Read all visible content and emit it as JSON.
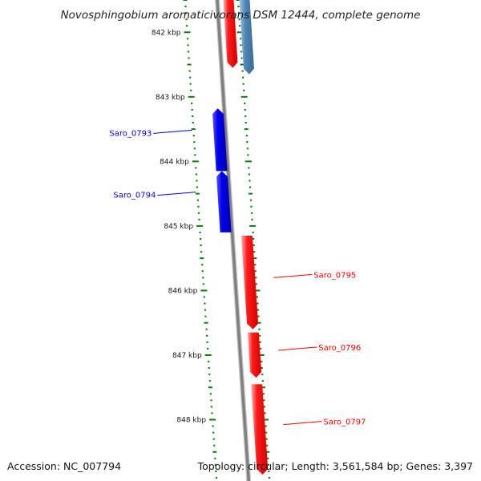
{
  "title": "Novosphingobium aromaticivorans DSM 12444, complete genome",
  "footer": {
    "accession": "Accession: NC_007794",
    "summary": "Topology: circular; Length: 3,561,584 bp; Genes: 3,397"
  },
  "colors": {
    "forward_strand": "#ff0000",
    "reverse_strand": "#0000ee",
    "other_gene": "#4f86b5",
    "backbone": "#808080",
    "ticks": "#0a7a0a"
  },
  "scale": {
    "kbp_range": [
      841.5,
      848.95
    ],
    "labels": [
      "842 kbp",
      "843 kbp",
      "844 kbp",
      "845 kbp",
      "846 kbp",
      "847 kbp",
      "848 kbp"
    ]
  },
  "genes": [
    {
      "id": "Saro_0793",
      "label": "Saro_0793",
      "strand": "reverse",
      "start_kbp": 843.18,
      "end_kbp": 844.15
    },
    {
      "id": "Saro_0794",
      "label": "Saro_0794",
      "strand": "reverse",
      "start_kbp": 844.15,
      "end_kbp": 845.1
    },
    {
      "id": "Saro_0795",
      "label": "Saro_0795",
      "strand": "forward",
      "start_kbp": 845.15,
      "end_kbp": 846.6
    },
    {
      "id": "Saro_0796",
      "label": "Saro_0796",
      "strand": "forward",
      "start_kbp": 846.65,
      "end_kbp": 847.35
    },
    {
      "id": "Saro_0797",
      "label": "Saro_0797",
      "strand": "forward",
      "start_kbp": 847.45,
      "end_kbp": 848.85
    }
  ],
  "partial_genes": [
    {
      "strand": "forward",
      "start_kbp": 841.5,
      "end_kbp": 842.55
    },
    {
      "strand": "other",
      "start_kbp": 841.5,
      "end_kbp": 842.65
    }
  ]
}
